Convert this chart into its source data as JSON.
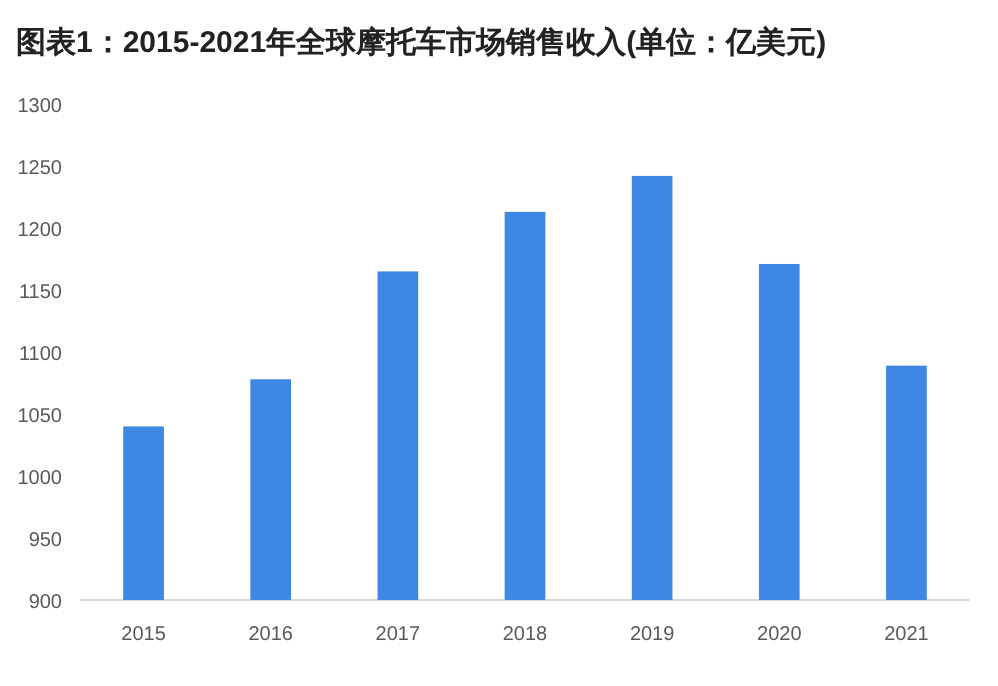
{
  "chart_data": {
    "type": "bar",
    "title": "图表1：2015-2021年全球摩托车市场销售收入(单位：亿美元)",
    "categories": [
      "2015",
      "2016",
      "2017",
      "2018",
      "2019",
      "2020",
      "2021"
    ],
    "values": [
      1040,
      1078,
      1165,
      1213,
      1242,
      1171,
      1089
    ],
    "color": "#3f87e4",
    "ylim": [
      900,
      1300
    ],
    "yticks": [
      900,
      950,
      1000,
      1050,
      1100,
      1150,
      1200,
      1250,
      1300
    ],
    "grid": false
  }
}
